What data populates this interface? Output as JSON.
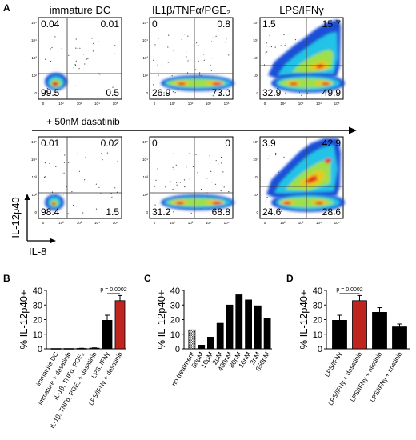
{
  "panel_a": {
    "letter": "A",
    "col_titles": [
      "immature DC",
      "IL1β/TNFα/PGE₂",
      "LPS/IFNγ"
    ],
    "treatment_label": "+ 50nM dasatinib",
    "axis_y": "IL-12p40",
    "axis_x": "IL-8",
    "y_ticks": [
      "10⁵",
      "10⁴",
      "10³",
      "10²",
      "0"
    ],
    "x_ticks": [
      "0",
      "10²",
      "10³",
      "10⁴",
      "10⁵"
    ],
    "plots": [
      {
        "ul": "0.04",
        "ur": "0.01",
        "ll": "99.5",
        "lr": "0.5"
      },
      {
        "ul": "0",
        "ur": "0.8",
        "ll": "26.9",
        "lr": "73.0"
      },
      {
        "ul": "1.5",
        "ur": "15.7",
        "ll": "32.9",
        "lr": "49.9"
      },
      {
        "ul": "0.01",
        "ur": "0.02",
        "ll": "98.4",
        "lr": "1.5"
      },
      {
        "ul": "0",
        "ur": "0",
        "ll": "31.2",
        "lr": "68.8"
      },
      {
        "ul": "3.9",
        "ur": "42.9",
        "ll": "24.6",
        "lr": "28.6"
      }
    ]
  },
  "chart_data": [
    {
      "type": "bar",
      "panel": "B",
      "ylabel": "% IL-12p40+",
      "ylim": [
        0,
        40
      ],
      "yticks": [
        0,
        10,
        20,
        30,
        40
      ],
      "categories": [
        "immature DC",
        "immature + dasatinib",
        "IL-1β, TNFα, PGE₂",
        "IL-1β, TNFα, PGE₂ + dasatinib",
        "LPS, IFNγ",
        "LPS/IFNγ + dasatinib"
      ],
      "values": [
        0.2,
        0.2,
        0.3,
        0.5,
        19.5,
        33
      ],
      "errors": [
        0,
        0,
        0.1,
        0.2,
        3.5,
        3.5
      ],
      "colors": [
        "#000000",
        "#000000",
        "#000000",
        "#000000",
        "#000000",
        "#c0241e"
      ],
      "annotation": "p = 0.0002"
    },
    {
      "type": "bar",
      "panel": "C",
      "ylabel": "% IL-12p40+",
      "ylim": [
        0,
        40
      ],
      "yticks": [
        0,
        10,
        20,
        30,
        40
      ],
      "categories": [
        "no treatment",
        "50μM",
        "10μM",
        "2μM",
        "400nM",
        "80nM",
        "16nM",
        "3nM",
        "650pM"
      ],
      "values": [
        13,
        2.5,
        8,
        17.5,
        30,
        37,
        33.5,
        29.5,
        21
      ],
      "hatched": [
        true,
        false,
        false,
        false,
        false,
        false,
        false,
        false,
        false
      ]
    },
    {
      "type": "bar",
      "panel": "D",
      "ylabel": "% IL-12p40+",
      "ylim": [
        0,
        40
      ],
      "yticks": [
        0,
        10,
        20,
        30,
        40
      ],
      "categories": [
        "LPS/IFNγ",
        "LPS/IFNγ + dasatinib",
        "LPS/IFNγ + nilotinib",
        "LPS/IFNγ + imatinib"
      ],
      "values": [
        19.5,
        33,
        25,
        15
      ],
      "errors": [
        3.5,
        3.5,
        3.2,
        2
      ],
      "colors": [
        "#000000",
        "#c0241e",
        "#000000",
        "#000000"
      ],
      "annotation": "p = 0.0002"
    }
  ]
}
